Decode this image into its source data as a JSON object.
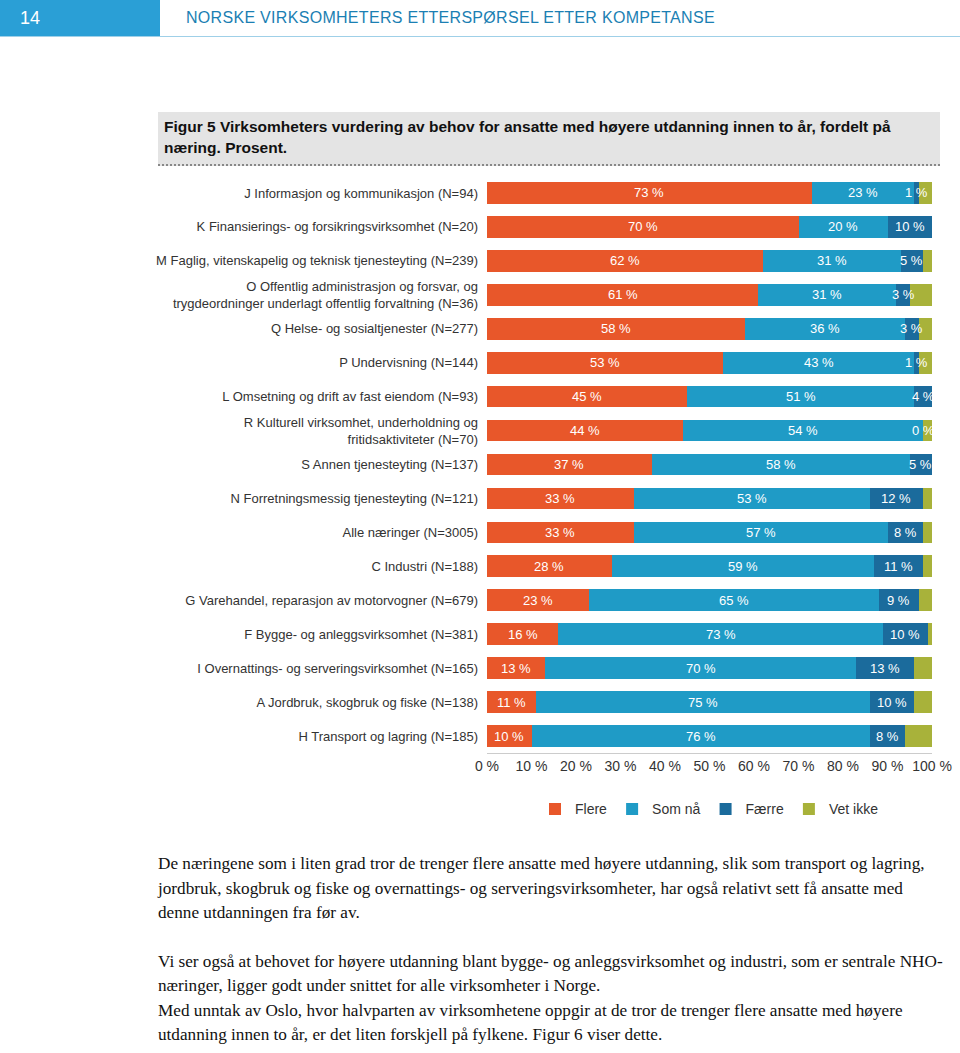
{
  "page_header": {
    "page_number": 14,
    "title": "NORSKE VIRKSOMHETERS ETTERSPØRSEL ETTER KOMPETANSE"
  },
  "figure_title": "Figur 5 Virksomheters vurdering av behov for ansatte med høyere utdanning innen to år, fordelt på næring. Prosent.",
  "chart_data": {
    "type": "bar",
    "orientation": "horizontal",
    "stacked": true,
    "data_labels": true,
    "legend": "bottom",
    "grid": false,
    "categories": [
      "J Informasjon og kommunikasjon (N=94)",
      "K Finansierings- og forsikringsvirksomhet (N=20)",
      "M Faglig, vitenskapelig og teknisk tjenesteyting (N=239)",
      "O Offentlig administrasjon og forsvar, og trygdeordninger underlagt offentlig forvaltning (N=36)",
      "Q Helse- og sosialtjenester (N=277)",
      "P Undervisning (N=144)",
      "L Omsetning og drift av fast eiendom (N=93)",
      "R Kulturell virksomhet, underholdning og fritidsaktiviteter (N=70)",
      "S Annen tjenesteyting (N=137)",
      "N Forretningsmessig tjenesteyting (N=121)",
      "Alle næringer (N=3005)",
      "C Industri (N=188)",
      "G Varehandel, reparasjon av motorvogner (N=679)",
      "F Bygge- og anleggsvirksomhet (N=381)",
      "I Overnattings- og serveringsvirksomhet (N=165)",
      "A Jordbruk, skogbruk og fiske (N=138)",
      "H Transport og lagring (N=185)"
    ],
    "series": [
      {
        "name": "Flere",
        "color": "#e8572a",
        "values": [
          73,
          70,
          62,
          61,
          58,
          53,
          45,
          44,
          37,
          33,
          33,
          28,
          23,
          16,
          13,
          11,
          10
        ],
        "value_labels": [
          "73 %",
          "70 %",
          "62 %",
          "61 %",
          "58 %",
          "53 %",
          "45 %",
          "44 %",
          "37 %",
          "33 %",
          "33 %",
          "28 %",
          "23 %",
          "16 %",
          "13 %",
          "11 %",
          "10 %"
        ]
      },
      {
        "name": "Som nå",
        "color": "#1f9bc6",
        "values": [
          23,
          20,
          31,
          31,
          36,
          43,
          51,
          54,
          58,
          53,
          57,
          59,
          65,
          73,
          70,
          75,
          76
        ],
        "value_labels": [
          "23 %",
          "20 %",
          "31 %",
          "31 %",
          "36 %",
          "43 %",
          "51 %",
          "54 %",
          "58 %",
          "53 %",
          "57 %",
          "59 %",
          "65 %",
          "73 %",
          "70 %",
          "75 %",
          "76 %"
        ]
      },
      {
        "name": "Færre",
        "color": "#1b6b9c",
        "values": [
          1,
          10,
          5,
          3,
          3,
          1,
          4,
          0,
          5,
          12,
          8,
          11,
          9,
          10,
          13,
          10,
          8
        ],
        "value_labels": [
          "1 %",
          "10 %",
          "5 %",
          "3 %",
          "3 %",
          "1 %",
          "4 %",
          "0 %",
          "5 %",
          "12 %",
          "8 %",
          "11 %",
          "9 %",
          "10 %",
          "13 %",
          "10 %",
          "8 %"
        ]
      },
      {
        "name": "Vet ikke",
        "color": "#a8b23a",
        "values": [
          3,
          0,
          2,
          5,
          3,
          3,
          0,
          2,
          0,
          2,
          2,
          2,
          3,
          1,
          4,
          4,
          6
        ],
        "value_labels": [
          null,
          null,
          null,
          null,
          null,
          null,
          null,
          null,
          null,
          null,
          null,
          null,
          null,
          null,
          null,
          null,
          null
        ]
      }
    ],
    "xlim": [
      0,
      100
    ],
    "xticks": [
      {
        "value": 0,
        "label": "0 %"
      },
      {
        "value": 10,
        "label": "10 %"
      },
      {
        "value": 20,
        "label": "20 %"
      },
      {
        "value": 30,
        "label": "30 %"
      },
      {
        "value": 40,
        "label": "40 %"
      },
      {
        "value": 50,
        "label": "50 %"
      },
      {
        "value": 60,
        "label": "60 %"
      },
      {
        "value": 70,
        "label": "70 %"
      },
      {
        "value": 80,
        "label": "80 %"
      },
      {
        "value": 90,
        "label": "90 %"
      },
      {
        "value": 100,
        "label": "100 %"
      }
    ]
  },
  "paragraphs": [
    "De næringene som i liten grad tror de trenger flere ansatte med høyere utdanning, slik som transport og lagring, jordbruk, skogbruk og fiske og overnattings- og serveringsvirksomheter, har også relativt sett få ansatte med denne utdanningen fra før av.",
    "Vi ser også at behovet for høyere utdanning blant bygge- og anleggsvirksomhet og industri, som er sentrale NHO-næringer, ligger godt under snittet for alle virksomheter i Norge.",
    "Med unntak av Oslo, hvor halvparten av virksomhetene oppgir at de tror de trenger flere ansatte med høyere utdanning innen to år, er det liten forskjell på fylkene. Figur 6 viser dette."
  ]
}
